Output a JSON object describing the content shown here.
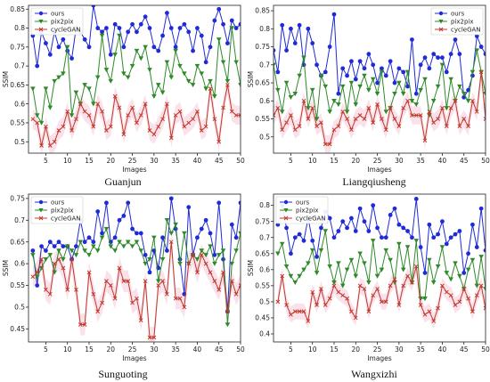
{
  "colors": {
    "ours": "#1f2bd6",
    "pix2pix": "#2f8a2a",
    "cycleGAN": "#c0392b",
    "band": "#f7c9d8",
    "legend_bg": "#ffffff"
  },
  "chart_data": [
    {
      "type": "line",
      "title": "Guanjun",
      "xlabel": "Images",
      "ylabel": "SSIM",
      "xlim": [
        1,
        50
      ],
      "ylim": [
        0.47,
        0.86
      ],
      "xticks": [
        5,
        10,
        15,
        20,
        25,
        30,
        35,
        40,
        45,
        50
      ],
      "yticks": [
        0.5,
        0.55,
        0.6,
        0.65,
        0.7,
        0.75,
        0.8,
        0.85
      ],
      "legend": "top-left",
      "grid": false,
      "x": [
        2,
        3,
        4,
        5,
        6,
        7,
        8,
        9,
        10,
        11,
        12,
        13,
        14,
        15,
        16,
        17,
        18,
        19,
        20,
        21,
        22,
        23,
        24,
        25,
        26,
        27,
        28,
        29,
        30,
        31,
        32,
        33,
        34,
        35,
        36,
        37,
        38,
        39,
        40,
        41,
        42,
        43,
        44,
        45,
        46,
        47,
        48,
        49,
        50
      ],
      "series": [
        {
          "name": "ours",
          "values": [
            0.78,
            0.7,
            0.79,
            0.76,
            0.73,
            0.79,
            0.75,
            0.77,
            0.74,
            0.72,
            0.8,
            0.79,
            0.77,
            0.75,
            0.86,
            0.8,
            0.79,
            0.8,
            0.73,
            0.81,
            0.8,
            0.75,
            0.79,
            0.81,
            0.79,
            0.81,
            0.83,
            0.8,
            0.75,
            0.74,
            0.78,
            0.84,
            0.8,
            0.75,
            0.8,
            0.81,
            0.79,
            0.74,
            0.8,
            0.78,
            0.71,
            0.75,
            0.82,
            0.85,
            0.81,
            0.76,
            0.82,
            0.8,
            0.81
          ]
        },
        {
          "name": "pix2pix",
          "values": [
            0.64,
            0.57,
            0.55,
            0.64,
            0.59,
            0.66,
            0.67,
            0.68,
            0.75,
            0.57,
            0.63,
            0.6,
            0.65,
            0.64,
            0.6,
            0.67,
            0.78,
            0.69,
            0.66,
            0.73,
            0.78,
            0.68,
            0.67,
            0.7,
            0.74,
            0.72,
            0.75,
            0.69,
            0.62,
            0.65,
            0.63,
            0.71,
            0.67,
            0.74,
            0.7,
            0.68,
            0.66,
            0.65,
            0.7,
            0.68,
            0.64,
            0.66,
            0.62,
            0.77,
            0.71,
            0.66,
            0.8,
            0.71,
            0.65
          ]
        },
        {
          "name": "cycleGAN",
          "values": [
            0.56,
            0.55,
            0.49,
            0.54,
            0.49,
            0.5,
            0.53,
            0.54,
            0.58,
            0.53,
            0.56,
            0.6,
            0.58,
            0.57,
            0.54,
            0.6,
            0.58,
            0.53,
            0.54,
            0.62,
            0.59,
            0.52,
            0.57,
            0.59,
            0.55,
            0.57,
            0.6,
            0.53,
            0.52,
            0.54,
            0.56,
            0.6,
            0.51,
            0.57,
            0.58,
            0.54,
            0.55,
            0.56,
            0.58,
            0.53,
            0.54,
            0.64,
            0.56,
            0.5,
            0.59,
            0.65,
            0.58,
            0.57,
            0.57
          ]
        }
      ]
    },
    {
      "type": "line",
      "title": "Liangqiusheng",
      "xlabel": "Images",
      "ylabel": "SSIM",
      "xlim": [
        1,
        50
      ],
      "ylim": [
        0.455,
        0.865
      ],
      "xticks": [
        5,
        10,
        15,
        20,
        25,
        30,
        35,
        40,
        45,
        50
      ],
      "yticks": [
        0.5,
        0.55,
        0.6,
        0.65,
        0.7,
        0.75,
        0.8,
        0.85
      ],
      "legend": "top-right",
      "grid": false,
      "x": [
        1,
        2,
        3,
        4,
        5,
        6,
        7,
        8,
        9,
        10,
        11,
        12,
        13,
        14,
        15,
        16,
        17,
        18,
        19,
        20,
        21,
        22,
        23,
        24,
        25,
        26,
        27,
        28,
        29,
        30,
        31,
        32,
        33,
        34,
        35,
        36,
        37,
        38,
        39,
        40,
        41,
        42,
        43,
        44,
        45,
        46,
        47,
        48,
        49,
        50
      ],
      "series": [
        {
          "name": "ours",
          "values": [
            0.74,
            0.68,
            0.81,
            0.74,
            0.8,
            0.76,
            0.81,
            0.7,
            0.8,
            0.76,
            0.7,
            0.67,
            0.68,
            0.75,
            0.84,
            0.62,
            0.69,
            0.67,
            0.71,
            0.66,
            0.71,
            0.69,
            0.73,
            0.7,
            0.65,
            0.69,
            0.67,
            0.71,
            0.65,
            0.69,
            0.68,
            0.64,
            0.77,
            0.62,
            0.7,
            0.72,
            0.69,
            0.73,
            0.72,
            0.72,
            0.68,
            0.73,
            0.77,
            0.73,
            0.61,
            0.63,
            0.67,
            0.78,
            0.75,
            0.73
          ]
        },
        {
          "name": "pix2pix",
          "values": [
            0.7,
            0.63,
            0.57,
            0.65,
            0.61,
            0.62,
            0.67,
            0.72,
            0.58,
            0.63,
            0.55,
            0.67,
            0.64,
            0.57,
            0.6,
            0.59,
            0.64,
            0.57,
            0.65,
            0.59,
            0.64,
            0.67,
            0.63,
            0.66,
            0.62,
            0.68,
            0.57,
            0.58,
            0.62,
            0.65,
            0.62,
            0.68,
            0.6,
            0.59,
            0.63,
            0.66,
            0.56,
            0.6,
            0.64,
            0.7,
            0.58,
            0.66,
            0.6,
            0.64,
            0.62,
            0.6,
            0.68,
            0.74,
            0.68,
            0.62
          ]
        },
        {
          "name": "cycleGAN",
          "values": [
            0.56,
            0.58,
            0.52,
            0.54,
            0.56,
            0.52,
            0.53,
            0.6,
            0.55,
            0.58,
            0.53,
            0.54,
            0.48,
            0.48,
            0.52,
            0.53,
            0.57,
            0.55,
            0.52,
            0.55,
            0.56,
            0.55,
            0.58,
            0.54,
            0.59,
            0.55,
            0.52,
            0.58,
            0.55,
            0.53,
            0.58,
            0.6,
            0.56,
            0.56,
            0.56,
            0.49,
            0.57,
            0.54,
            0.55,
            0.58,
            0.53,
            0.58,
            0.6,
            0.53,
            0.55,
            0.53,
            0.6,
            0.57,
            0.68,
            0.55
          ]
        }
      ]
    },
    {
      "type": "line",
      "title": "Sunguoting",
      "xlabel": "Images",
      "ylabel": "SSIM",
      "xlim": [
        1,
        50
      ],
      "ylim": [
        0.42,
        0.76
      ],
      "xticks": [
        5,
        10,
        15,
        20,
        25,
        30,
        35,
        40,
        45,
        50
      ],
      "yticks": [
        0.45,
        0.5,
        0.55,
        0.6,
        0.65,
        0.7,
        0.75
      ],
      "legend": "top-left",
      "grid": false,
      "x": [
        2,
        3,
        4,
        5,
        6,
        7,
        8,
        9,
        10,
        11,
        12,
        13,
        14,
        15,
        16,
        17,
        18,
        19,
        20,
        21,
        22,
        23,
        24,
        25,
        26,
        27,
        28,
        29,
        30,
        31,
        32,
        33,
        34,
        35,
        36,
        37,
        38,
        39,
        40,
        41,
        42,
        43,
        44,
        45,
        46,
        47,
        48,
        49,
        50
      ],
      "series": [
        {
          "name": "ours",
          "values": [
            0.63,
            0.55,
            0.64,
            0.63,
            0.65,
            0.64,
            0.65,
            0.64,
            0.64,
            0.61,
            0.64,
            0.7,
            0.65,
            0.66,
            0.65,
            0.72,
            0.67,
            0.74,
            0.65,
            0.66,
            0.7,
            0.71,
            0.74,
            0.68,
            0.67,
            0.67,
            0.62,
            0.58,
            0.63,
            0.59,
            0.66,
            0.63,
            0.75,
            0.68,
            0.61,
            0.53,
            0.73,
            0.62,
            0.66,
            0.68,
            0.7,
            0.67,
            0.62,
            0.74,
            0.61,
            0.49,
            0.69,
            0.66,
            0.74
          ]
        },
        {
          "name": "pix2pix",
          "values": [
            0.62,
            0.57,
            0.59,
            0.61,
            0.62,
            0.58,
            0.63,
            0.61,
            0.64,
            0.63,
            0.62,
            0.65,
            0.63,
            0.62,
            0.64,
            0.63,
            0.66,
            0.68,
            0.64,
            0.63,
            0.65,
            0.64,
            0.65,
            0.64,
            0.65,
            0.63,
            0.6,
            0.61,
            0.66,
            0.56,
            0.61,
            0.7,
            0.67,
            0.69,
            0.6,
            0.67,
            0.6,
            0.62,
            0.61,
            0.63,
            0.62,
            0.64,
            0.6,
            0.62,
            0.63,
            0.46,
            0.6,
            0.63,
            0.67
          ]
        },
        {
          "name": "cycleGAN",
          "values": [
            0.57,
            0.58,
            0.61,
            0.54,
            0.53,
            0.6,
            0.61,
            0.59,
            0.54,
            0.61,
            0.54,
            0.46,
            0.46,
            0.58,
            0.53,
            0.49,
            0.51,
            0.56,
            0.55,
            0.52,
            0.59,
            0.56,
            0.56,
            0.51,
            0.52,
            0.47,
            0.56,
            0.43,
            0.43,
            0.55,
            0.56,
            0.53,
            0.65,
            0.52,
            0.52,
            0.5,
            0.6,
            0.62,
            0.58,
            0.62,
            0.6,
            0.58,
            0.56,
            0.54,
            0.58,
            0.49,
            0.56,
            0.53,
            0.55
          ]
        }
      ]
    },
    {
      "type": "line",
      "title": "Wangxizhi",
      "xlabel": "Images",
      "ylabel": "SSIM",
      "xlim": [
        1,
        50
      ],
      "ylim": [
        0.375,
        0.835
      ],
      "xticks": [
        5,
        10,
        15,
        20,
        25,
        30,
        35,
        40,
        45,
        50
      ],
      "yticks": [
        0.4,
        0.45,
        0.5,
        0.55,
        0.6,
        0.65,
        0.7,
        0.75,
        0.8
      ],
      "legend": "top-left",
      "grid": false,
      "x": [
        2,
        3,
        4,
        5,
        6,
        7,
        8,
        9,
        10,
        11,
        12,
        13,
        14,
        15,
        16,
        17,
        18,
        19,
        20,
        21,
        22,
        23,
        24,
        25,
        26,
        27,
        28,
        29,
        30,
        31,
        32,
        33,
        34,
        35,
        36,
        37,
        38,
        39,
        40,
        41,
        42,
        43,
        44,
        45,
        46,
        47,
        48,
        49,
        50
      ],
      "series": [
        {
          "name": "ours",
          "values": [
            0.74,
            0.8,
            0.73,
            0.65,
            0.7,
            0.71,
            0.69,
            0.76,
            0.69,
            0.64,
            0.73,
            0.78,
            0.76,
            0.7,
            0.72,
            0.75,
            0.73,
            0.76,
            0.72,
            0.79,
            0.75,
            0.72,
            0.8,
            0.73,
            0.7,
            0.7,
            0.77,
            0.79,
            0.74,
            0.73,
            0.72,
            0.7,
            0.82,
            0.67,
            0.59,
            0.74,
            0.7,
            0.71,
            0.75,
            0.68,
            0.7,
            0.71,
            0.72,
            0.59,
            0.65,
            0.74,
            0.67,
            0.79,
            0.66
          ]
        },
        {
          "name": "pix2pix",
          "values": [
            0.65,
            0.68,
            0.61,
            0.58,
            0.56,
            0.58,
            0.6,
            0.62,
            0.66,
            0.59,
            0.66,
            0.72,
            0.61,
            0.56,
            0.62,
            0.55,
            0.6,
            0.63,
            0.58,
            0.65,
            0.62,
            0.56,
            0.69,
            0.58,
            0.6,
            0.66,
            0.63,
            0.56,
            0.68,
            0.6,
            0.67,
            0.56,
            0.69,
            0.51,
            0.51,
            0.63,
            0.56,
            0.61,
            0.67,
            0.59,
            0.57,
            0.62,
            0.58,
            0.54,
            0.6,
            0.63,
            0.55,
            0.64,
            0.54
          ]
        },
        {
          "name": "cycleGAN",
          "values": [
            0.5,
            0.58,
            0.49,
            0.46,
            0.47,
            0.47,
            0.47,
            0.44,
            0.53,
            0.49,
            0.54,
            0.49,
            0.51,
            0.55,
            0.53,
            0.52,
            0.51,
            0.47,
            0.45,
            0.55,
            0.54,
            0.47,
            0.52,
            0.54,
            0.5,
            0.5,
            0.55,
            0.57,
            0.49,
            0.55,
            0.58,
            0.56,
            0.61,
            0.49,
            0.46,
            0.47,
            0.44,
            0.48,
            0.55,
            0.53,
            0.52,
            0.49,
            0.5,
            0.54,
            0.51,
            0.47,
            0.52,
            0.55,
            0.48
          ]
        }
      ]
    }
  ]
}
